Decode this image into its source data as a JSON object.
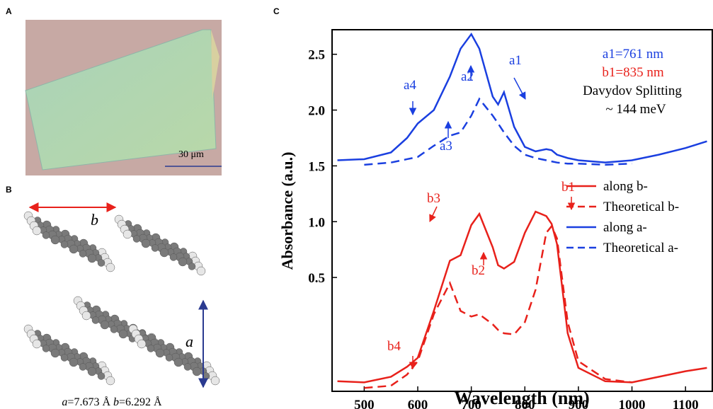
{
  "panels": {
    "a": {
      "label": "A",
      "scale_bar": "30 μm"
    },
    "b": {
      "label": "B",
      "b_axis": "b",
      "a_axis": "a",
      "caption": [
        "a",
        "=7.673 Å ",
        "b",
        "=6.292 Å"
      ]
    },
    "c": {
      "label": "C"
    }
  },
  "chart_data": {
    "type": "line",
    "x_label": "Wavelength (nm)",
    "y_label": "Absorbance (a.u.)",
    "x": [
      450,
      500,
      550,
      580,
      600,
      630,
      660,
      680,
      700,
      715,
      740,
      750,
      761,
      780,
      800,
      820,
      840,
      850,
      860,
      880,
      900,
      950,
      1000,
      1050,
      1100,
      1140
    ],
    "series": [
      {
        "name": "along b-",
        "color": "#e8211b",
        "dash": false,
        "values": [
          -0.43,
          -0.44,
          -0.39,
          -0.3,
          -0.22,
          0.2,
          0.65,
          0.7,
          0.97,
          1.07,
          0.77,
          0.61,
          0.58,
          0.64,
          0.9,
          1.09,
          1.05,
          0.98,
          0.8,
          0.0,
          -0.31,
          -0.43,
          -0.44,
          -0.39,
          -0.34,
          -0.31
        ]
      },
      {
        "name": "Theoretical b-",
        "color": "#e8211b",
        "dash": true,
        "values": [
          null,
          -0.49,
          -0.47,
          -0.37,
          -0.25,
          0.17,
          0.45,
          0.2,
          0.15,
          0.17,
          0.08,
          0.03,
          0.0,
          -0.01,
          0.1,
          0.39,
          0.9,
          0.96,
          0.85,
          0.1,
          -0.25,
          -0.41,
          -0.44,
          null,
          null,
          null
        ]
      },
      {
        "name": "along a-",
        "color": "#1a3fe0",
        "dash": false,
        "values": [
          1.55,
          1.56,
          1.62,
          1.75,
          1.88,
          2.0,
          2.3,
          2.55,
          2.68,
          2.55,
          2.12,
          2.05,
          2.16,
          1.85,
          1.67,
          1.63,
          1.65,
          1.64,
          1.6,
          1.57,
          1.55,
          1.53,
          1.55,
          1.6,
          1.66,
          1.72
        ]
      },
      {
        "name": "Theoretical a-",
        "color": "#1a3fe0",
        "dash": true,
        "values": [
          null,
          1.51,
          1.53,
          1.56,
          1.58,
          1.68,
          1.77,
          1.8,
          1.95,
          2.1,
          1.95,
          1.88,
          1.8,
          1.68,
          1.6,
          1.57,
          1.55,
          1.54,
          1.53,
          1.52,
          1.52,
          1.51,
          1.52,
          null,
          null,
          null
        ]
      }
    ],
    "xlim": [
      440,
      1150
    ],
    "ylim": [
      -0.52,
      2.72
    ],
    "xticks": [
      500,
      600,
      700,
      800,
      900,
      1000,
      1100
    ],
    "yticks": [
      0.5,
      {
        "value": 1,
        "label": "1.0"
      },
      1.5,
      {
        "value": 2,
        "label": "2.0"
      },
      2.5
    ],
    "annotations": [
      "a1",
      "a2",
      "a3",
      "a4",
      "b1",
      "b2",
      "b3",
      "b4"
    ],
    "notes": [
      "a1=761 nm",
      "b1=835 nm",
      "Davydov Splitting",
      "~ 144 meV"
    ],
    "legend": "right"
  }
}
